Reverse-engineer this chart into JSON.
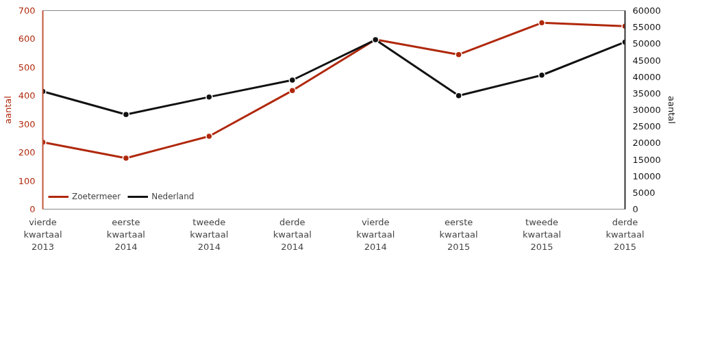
{
  "chart_data": {
    "type": "line",
    "categories": [
      "vierde\nkwartaal\n2013",
      "eerste\nkwartaal\n2014",
      "tweede\nkwartaal\n2014",
      "derde\nkwartaal\n2014",
      "vierde\nkwartaal\n2014",
      "eerste\nkwartaal\n2015",
      "tweede\nkwartaal\n2015",
      "derde\nkwartaal\n2015"
    ],
    "series": [
      {
        "name": "Zoetermeer",
        "color": "#b0280c",
        "values": [
          236,
          180,
          257,
          418,
          598,
          545,
          657,
          645
        ]
      },
      {
        "name": "Nederland",
        "color": "#111111",
        "axis": "y2",
        "values": [
          35600,
          28600,
          33900,
          39000,
          51200,
          34300,
          40500,
          50500
        ]
      }
    ],
    "ylabel": "aantal",
    "y2label": "aantal",
    "ylim": [
      0,
      700
    ],
    "yticks": [
      0,
      100,
      200,
      300,
      400,
      500,
      600,
      700
    ],
    "y2lim": [
      0,
      60000
    ],
    "y2ticks": [
      0,
      5000,
      10000,
      15000,
      20000,
      25000,
      30000,
      35000,
      40000,
      45000,
      50000,
      55000,
      60000
    ],
    "marker": "circle",
    "line_style": "solid",
    "grid": false,
    "legend": "bottom left"
  }
}
